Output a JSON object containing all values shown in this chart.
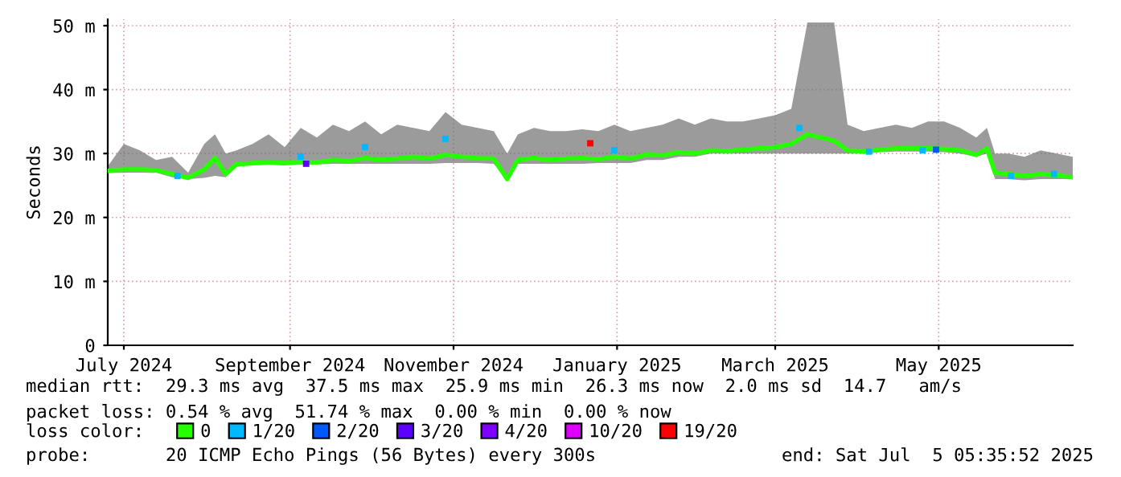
{
  "chart_data": {
    "type": "line",
    "ylabel": "Seconds",
    "legend_title": "loss color:",
    "legend": "bottom",
    "grid": true,
    "xlim": [
      "2024-07-10",
      "2025-07-05"
    ],
    "xticks": [
      {
        "value": "2024-07-16",
        "label": "July 2024"
      },
      {
        "value": "2024-09-16",
        "label": "September 2024"
      },
      {
        "value": "2024-11-16",
        "label": "November 2024"
      },
      {
        "value": "2025-01-16",
        "label": "January 2025"
      },
      {
        "value": "2025-03-16",
        "label": "March 2025"
      },
      {
        "value": "2025-05-16",
        "label": "May 2025"
      }
    ],
    "ylim": [
      0,
      51
    ],
    "yticks": [
      0,
      {
        "value": 10,
        "label": "10 m"
      },
      {
        "value": 20,
        "label": "20 m"
      },
      {
        "value": 30,
        "label": "30 m"
      },
      {
        "value": 40,
        "label": "40 m"
      },
      {
        "value": 50,
        "label": "50 m"
      }
    ],
    "x": [
      "2024-07-10",
      "2024-07-16",
      "2024-07-22",
      "2024-07-28",
      "2024-08-03",
      "2024-08-09",
      "2024-08-15",
      "2024-08-19",
      "2024-08-23",
      "2024-08-27",
      "2024-09-02",
      "2024-09-08",
      "2024-09-14",
      "2024-09-20",
      "2024-09-26",
      "2024-10-02",
      "2024-10-08",
      "2024-10-14",
      "2024-10-20",
      "2024-10-26",
      "2024-11-01",
      "2024-11-07",
      "2024-11-13",
      "2024-11-19",
      "2024-11-25",
      "2024-12-01",
      "2024-12-06",
      "2024-12-10",
      "2024-12-16",
      "2024-12-22",
      "2024-12-28",
      "2025-01-03",
      "2025-01-09",
      "2025-01-15",
      "2025-01-21",
      "2025-01-27",
      "2025-02-02",
      "2025-02-08",
      "2025-02-14",
      "2025-02-20",
      "2025-02-26",
      "2025-03-04",
      "2025-03-10",
      "2025-03-16",
      "2025-03-22",
      "2025-03-28",
      "2025-04-02",
      "2025-04-07",
      "2025-04-12",
      "2025-04-18",
      "2025-04-24",
      "2025-04-30",
      "2025-05-06",
      "2025-05-12",
      "2025-05-18",
      "2025-05-24",
      "2025-05-30",
      "2025-06-03",
      "2025-06-06",
      "2025-06-11",
      "2025-06-17",
      "2025-06-23",
      "2025-06-29",
      "2025-07-05"
    ],
    "series": [
      {
        "name": "0",
        "color": "#26ff00",
        "values": [
          27.3,
          27.5,
          27.5,
          27.4,
          26.8,
          26.2,
          27.5,
          29.3,
          26.8,
          28.3,
          28.5,
          28.6,
          28.5,
          28.7,
          28.6,
          29.0,
          28.8,
          29.3,
          29.0,
          29.2,
          29.5,
          29.2,
          29.8,
          29.5,
          29.3,
          29.2,
          26.0,
          29.0,
          29.3,
          29.0,
          29.2,
          29.3,
          29.1,
          29.5,
          29.2,
          29.8,
          29.7,
          30.2,
          30.0,
          30.5,
          30.4,
          30.6,
          30.8,
          31.0,
          31.5,
          33.0,
          32.5,
          32.0,
          30.5,
          30.3,
          30.6,
          30.8,
          30.8,
          30.8,
          30.7,
          30.5,
          29.8,
          30.8,
          27.0,
          26.8,
          26.5,
          26.8,
          26.6,
          26.3
        ],
        "lower": [
          27.0,
          27.0,
          27.0,
          27.0,
          26.3,
          26.0,
          26.2,
          26.5,
          26.3,
          28.0,
          28.2,
          28.3,
          28.2,
          28.3,
          28.3,
          28.4,
          28.4,
          28.4,
          28.4,
          28.4,
          28.4,
          28.4,
          28.5,
          28.5,
          28.5,
          28.4,
          25.8,
          28.4,
          28.4,
          28.4,
          28.4,
          28.4,
          28.5,
          28.5,
          28.5,
          29.0,
          29.0,
          29.5,
          29.5,
          30.0,
          30.0,
          30.0,
          30.0,
          30.0,
          30.0,
          30.0,
          30.0,
          30.0,
          30.0,
          30.0,
          30.2,
          30.3,
          30.3,
          30.3,
          30.2,
          30.0,
          29.5,
          30.0,
          26.0,
          26.0,
          25.8,
          26.0,
          26.0,
          26.0
        ],
        "upper": [
          28.0,
          31.5,
          30.5,
          29.0,
          29.5,
          27.0,
          31.5,
          33.0,
          30.0,
          30.5,
          31.5,
          33.0,
          31.0,
          34.0,
          32.5,
          34.5,
          33.5,
          35.0,
          33.0,
          34.5,
          34.0,
          33.5,
          36.5,
          34.5,
          34.0,
          33.5,
          30.0,
          33.0,
          34.0,
          33.5,
          33.5,
          33.8,
          33.5,
          34.5,
          33.5,
          34.0,
          34.5,
          35.5,
          34.5,
          35.5,
          35.0,
          35.0,
          35.5,
          36.0,
          37.0,
          50.5,
          50.5,
          50.5,
          34.5,
          33.5,
          34.0,
          34.5,
          34.0,
          35.0,
          35.0,
          34.0,
          32.5,
          34.0,
          30.0,
          30.0,
          29.5,
          30.5,
          30.0,
          29.5
        ]
      },
      {
        "name": "1/20",
        "type": "scatter",
        "color": "#00b8ff",
        "x": [
          "2024-08-05",
          "2024-09-20",
          "2024-10-14",
          "2024-11-13",
          "2025-01-15",
          "2025-03-25",
          "2025-04-20",
          "2025-05-10",
          "2025-06-12",
          "2025-06-28"
        ],
        "values": [
          26.5,
          29.5,
          31.0,
          32.3,
          30.5,
          34.0,
          30.3,
          30.5,
          26.5,
          26.8
        ]
      },
      {
        "name": "2/20",
        "type": "scatter",
        "color": "#0059ff",
        "x": [
          "2025-05-15"
        ],
        "values": [
          30.6
        ]
      },
      {
        "name": "3/20",
        "type": "scatter",
        "color": "#5e00ff",
        "x": [
          "2024-09-22"
        ],
        "values": [
          28.4
        ]
      },
      {
        "name": "4/20",
        "type": "scatter",
        "color": "#7e00ff",
        "values": [
          null,
          null,
          null,
          null,
          null,
          null,
          null,
          null,
          null,
          null,
          null,
          null,
          null,
          null,
          null,
          null,
          null,
          null,
          null,
          null,
          null,
          null,
          null,
          null,
          null,
          null,
          null,
          null,
          null,
          null,
          null,
          null,
          null,
          null,
          null,
          null,
          null,
          null,
          null,
          null,
          null,
          null,
          null,
          null,
          null,
          null,
          null,
          null,
          null,
          null,
          null,
          null,
          null,
          null,
          null,
          null,
          null,
          null,
          null,
          null,
          null,
          null,
          null,
          null
        ]
      },
      {
        "name": "10/20",
        "type": "scatter",
        "color": "#dd00ff",
        "values": [
          null,
          null,
          null,
          null,
          null,
          null,
          null,
          null,
          null,
          null,
          null,
          null,
          null,
          null,
          null,
          null,
          null,
          null,
          null,
          null,
          null,
          null,
          null,
          null,
          null,
          null,
          null,
          null,
          null,
          null,
          null,
          null,
          null,
          null,
          null,
          null,
          null,
          null,
          null,
          null,
          null,
          null,
          null,
          null,
          null,
          null,
          null,
          null,
          null,
          null,
          null,
          null,
          null,
          null,
          null,
          null,
          null,
          null,
          null,
          null,
          null,
          null,
          null,
          null
        ]
      },
      {
        "name": "19/20",
        "type": "scatter",
        "color": "#ff0000",
        "x": [
          "2025-01-06"
        ],
        "values": [
          31.6
        ]
      }
    ],
    "annotations": [
      "median rtt:  29.3 ms avg  37.5 ms max  25.9 ms min  26.3 ms now  2.0 ms sd  14.7   am/s",
      "packet loss: 0.54 % avg  51.74 % max  0.00 % min  0.00 % now",
      "probe:       20 ICMP Echo Pings (56 Bytes) every 300s",
      "end: Sat Jul  5 05:35:52 2025"
    ]
  }
}
